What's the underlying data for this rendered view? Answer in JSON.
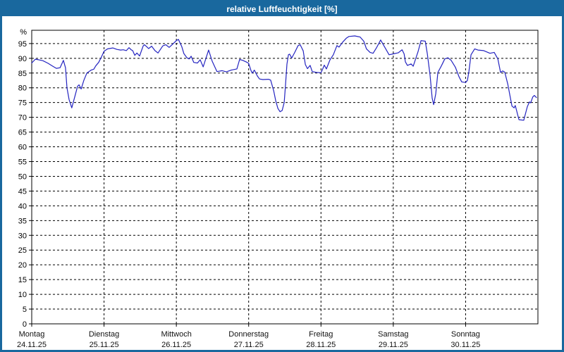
{
  "window": {
    "title": "relative Luftfeuchtigkeit [%]"
  },
  "colors": {
    "titlebar_bg": "#19689e",
    "frame": "#19689e",
    "plot_bg": "#ffffff",
    "grid": "#000000",
    "axis": "#000000",
    "tick_label": "#000000",
    "day_label": "#111111",
    "series_line": "#2424c0",
    "title_text": "#ffffff"
  },
  "chart_data": {
    "type": "line",
    "title": "relative Luftfeuchtigkeit [%]",
    "ylabel": "%",
    "ylim": [
      0,
      99.5
    ],
    "yticks": [
      0,
      5,
      10,
      15,
      20,
      25,
      30,
      35,
      40,
      45,
      50,
      55,
      60,
      65,
      70,
      75,
      80,
      85,
      90,
      95
    ],
    "ytick_unit_label": "%",
    "grid": "dashed",
    "legend_position": "none",
    "x_unit": "hours",
    "xlim": [
      0,
      168
    ],
    "x_day_ticks": [
      {
        "hour": 0,
        "name": "Montag",
        "date": "24.11.25"
      },
      {
        "hour": 24,
        "name": "Dienstag",
        "date": "25.11.25"
      },
      {
        "hour": 48,
        "name": "Mittwoch",
        "date": "26.11.25"
      },
      {
        "hour": 72,
        "name": "Donnerstag",
        "date": "27.11.25"
      },
      {
        "hour": 96,
        "name": "Freitag",
        "date": "28.11.25"
      },
      {
        "hour": 120,
        "name": "Samstag",
        "date": "29.11.25"
      },
      {
        "hour": 144,
        "name": "Sonntag",
        "date": "30.11.25"
      }
    ],
    "series": [
      {
        "name": "relative Luftfeuchtigkeit",
        "color": "#2424c0",
        "points": [
          [
            0.0,
            88.4
          ],
          [
            1.2,
            89.7
          ],
          [
            2.3,
            89.5
          ],
          [
            3.7,
            89.2
          ],
          [
            5.4,
            88.3
          ],
          [
            7.0,
            87.3
          ],
          [
            8.2,
            86.6
          ],
          [
            9.4,
            86.8
          ],
          [
            10.5,
            89.3
          ],
          [
            11.2,
            86.8
          ],
          [
            11.7,
            80.0
          ],
          [
            12.4,
            76.0
          ],
          [
            13.3,
            73.2
          ],
          [
            14.3,
            77.0
          ],
          [
            15.2,
            80.5
          ],
          [
            15.7,
            81.0
          ],
          [
            16.4,
            79.6
          ],
          [
            17.3,
            82.5
          ],
          [
            18.3,
            85.0
          ],
          [
            19.7,
            86.0
          ],
          [
            20.6,
            86.3
          ],
          [
            21.3,
            87.5
          ],
          [
            22.2,
            88.6
          ],
          [
            23.2,
            90.6
          ],
          [
            24.0,
            92.4
          ],
          [
            25.2,
            93.2
          ],
          [
            26.9,
            93.5
          ],
          [
            28.3,
            93.0
          ],
          [
            29.5,
            92.8
          ],
          [
            30.4,
            92.9
          ],
          [
            31.4,
            92.6
          ],
          [
            32.3,
            93.6
          ],
          [
            33.0,
            92.9
          ],
          [
            33.5,
            92.6
          ],
          [
            34.2,
            91.0
          ],
          [
            34.9,
            91.8
          ],
          [
            35.8,
            90.8
          ],
          [
            37.0,
            94.2
          ],
          [
            37.4,
            94.6
          ],
          [
            38.1,
            94.0
          ],
          [
            38.8,
            93.3
          ],
          [
            39.8,
            94.1
          ],
          [
            40.9,
            92.6
          ],
          [
            41.9,
            91.8
          ],
          [
            43.5,
            94.2
          ],
          [
            44.5,
            94.6
          ],
          [
            45.6,
            93.7
          ],
          [
            46.8,
            94.8
          ],
          [
            48.0,
            96.0
          ],
          [
            48.7,
            96.4
          ],
          [
            49.8,
            94.0
          ],
          [
            50.5,
            91.6
          ],
          [
            51.5,
            90.2
          ],
          [
            52.2,
            89.8
          ],
          [
            52.9,
            90.7
          ],
          [
            53.8,
            88.6
          ],
          [
            55.0,
            88.4
          ],
          [
            55.9,
            89.5
          ],
          [
            56.9,
            87.1
          ],
          [
            58.7,
            92.8
          ],
          [
            59.9,
            89.0
          ],
          [
            61.5,
            85.5
          ],
          [
            63.2,
            85.8
          ],
          [
            64.6,
            85.4
          ],
          [
            66.2,
            86.0
          ],
          [
            68.1,
            86.4
          ],
          [
            69.0,
            89.6
          ],
          [
            70.0,
            89.3
          ],
          [
            71.1,
            88.8
          ],
          [
            72.0,
            88.3
          ],
          [
            72.8,
            85.8
          ],
          [
            73.2,
            85.0
          ],
          [
            73.9,
            86.0
          ],
          [
            74.9,
            84.0
          ],
          [
            75.6,
            83.0
          ],
          [
            76.7,
            82.8
          ],
          [
            78.6,
            82.9
          ],
          [
            79.3,
            82.6
          ],
          [
            80.3,
            79.0
          ],
          [
            81.0,
            75.5
          ],
          [
            81.7,
            73.0
          ],
          [
            82.4,
            71.9
          ],
          [
            83.1,
            72.3
          ],
          [
            83.8,
            75.0
          ],
          [
            84.2,
            80.7
          ],
          [
            84.7,
            88.0
          ],
          [
            85.2,
            91.2
          ],
          [
            85.6,
            91.4
          ],
          [
            86.3,
            90.1
          ],
          [
            87.3,
            92.0
          ],
          [
            88.4,
            94.3
          ],
          [
            89.1,
            94.6
          ],
          [
            90.1,
            92.5
          ],
          [
            90.8,
            87.9
          ],
          [
            91.5,
            86.5
          ],
          [
            92.4,
            87.6
          ],
          [
            93.1,
            85.5
          ],
          [
            94.5,
            85.2
          ],
          [
            96.0,
            85.1
          ],
          [
            96.4,
            86.0
          ],
          [
            97.1,
            87.7
          ],
          [
            97.8,
            86.4
          ],
          [
            99.0,
            89.5
          ],
          [
            100.1,
            91.2
          ],
          [
            101.3,
            94.3
          ],
          [
            102.0,
            93.8
          ],
          [
            103.2,
            95.5
          ],
          [
            104.4,
            96.8
          ],
          [
            105.3,
            97.4
          ],
          [
            107.2,
            97.6
          ],
          [
            109.0,
            97.2
          ],
          [
            110.2,
            95.8
          ],
          [
            111.1,
            93.2
          ],
          [
            112.3,
            92.0
          ],
          [
            113.3,
            91.7
          ],
          [
            114.4,
            93.5
          ],
          [
            115.8,
            96.2
          ],
          [
            117.2,
            93.7
          ],
          [
            118.6,
            91.2
          ],
          [
            120.0,
            91.5
          ],
          [
            121.7,
            91.9
          ],
          [
            122.9,
            92.9
          ],
          [
            123.6,
            91.5
          ],
          [
            124.0,
            88.8
          ],
          [
            124.7,
            87.6
          ],
          [
            125.9,
            88.1
          ],
          [
            126.6,
            87.3
          ],
          [
            128.2,
            92.2
          ],
          [
            129.2,
            96.0
          ],
          [
            130.6,
            95.8
          ],
          [
            131.3,
            91.4
          ],
          [
            132.2,
            84.3
          ],
          [
            132.9,
            76.5
          ],
          [
            133.4,
            74.3
          ],
          [
            134.1,
            78.0
          ],
          [
            134.8,
            85.2
          ],
          [
            136.0,
            87.5
          ],
          [
            137.1,
            89.8
          ],
          [
            138.1,
            90.2
          ],
          [
            139.2,
            89.3
          ],
          [
            140.6,
            87.0
          ],
          [
            141.8,
            83.8
          ],
          [
            142.7,
            82.0
          ],
          [
            144.0,
            81.8
          ],
          [
            144.6,
            82.5
          ],
          [
            145.1,
            85.5
          ],
          [
            145.8,
            91.2
          ],
          [
            147.0,
            93.2
          ],
          [
            148.1,
            92.8
          ],
          [
            150.0,
            92.6
          ],
          [
            152.1,
            91.7
          ],
          [
            153.5,
            92.0
          ],
          [
            154.7,
            89.8
          ],
          [
            155.6,
            85.2
          ],
          [
            156.3,
            85.7
          ],
          [
            157.0,
            85.3
          ],
          [
            158.0,
            81.2
          ],
          [
            158.7,
            77.4
          ],
          [
            159.4,
            73.8
          ],
          [
            160.1,
            73.2
          ],
          [
            160.5,
            74.0
          ],
          [
            161.7,
            69.2
          ],
          [
            163.3,
            69.0
          ],
          [
            164.5,
            73.6
          ],
          [
            165.2,
            75.2
          ],
          [
            165.6,
            74.9
          ],
          [
            166.3,
            76.9
          ],
          [
            166.8,
            77.4
          ],
          [
            167.5,
            76.7
          ]
        ]
      }
    ]
  }
}
